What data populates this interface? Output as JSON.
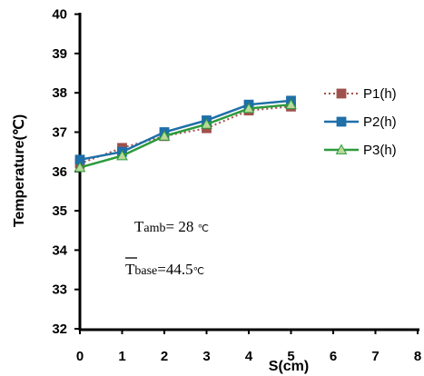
{
  "chart_data": {
    "type": "line",
    "title": "",
    "xlabel": "S(cm)",
    "ylabel": "Temperature(℃)",
    "xlim": [
      0,
      8
    ],
    "ylim": [
      32,
      40
    ],
    "x_ticks": [
      "0",
      "1",
      "2",
      "3",
      "4",
      "5",
      "6",
      "7",
      "8"
    ],
    "y_ticks": [
      "32",
      "33",
      "34",
      "35",
      "36",
      "37",
      "38",
      "39",
      "40"
    ],
    "x": [
      0,
      1,
      2,
      3,
      4,
      5
    ],
    "grid": false,
    "legend_position": "right",
    "series": [
      {
        "name": "P1(h)",
        "values": [
          36.2,
          36.6,
          36.9,
          37.1,
          37.55,
          37.65
        ],
        "color": "#a0504c",
        "marker": "square",
        "line_style": "dotted"
      },
      {
        "name": "P2(h)",
        "values": [
          36.3,
          36.5,
          37.0,
          37.3,
          37.7,
          37.8
        ],
        "color": "#1f6fa8",
        "marker": "square",
        "line_style": "solid"
      },
      {
        "name": "P3(h)",
        "values": [
          36.1,
          36.4,
          36.9,
          37.2,
          37.6,
          37.7
        ],
        "color": "#2c9a3c",
        "marker": "triangle",
        "line_style": "solid"
      }
    ],
    "annotations": {
      "tamb_symbol": "T",
      "tamb_sub": "amb",
      "tamb_value": "= 28 ",
      "tamb_unit": "℃",
      "tbase_symbol": "T",
      "tbase_sub": "base",
      "tbase_value": "=44.5",
      "tbase_unit": "℃"
    }
  }
}
